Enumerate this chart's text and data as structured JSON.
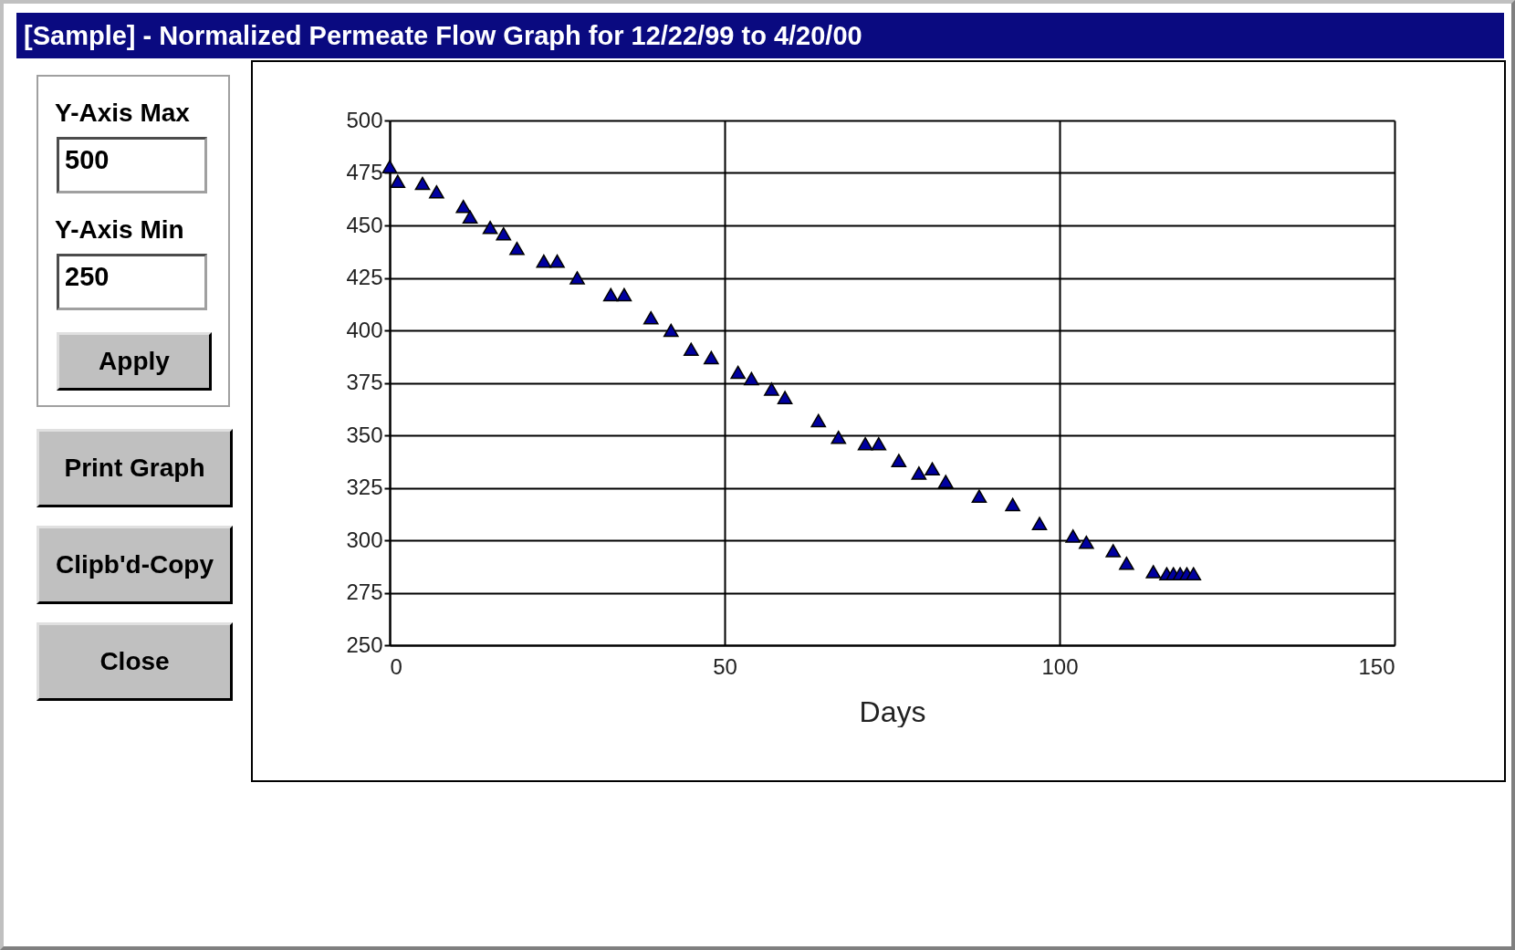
{
  "chart_data": {
    "type": "scatter",
    "title": "[Sample] - Normalized Permeate Flow Graph for 12/22/99 to 4/20/00",
    "xlabel": "Days",
    "x": [
      0,
      1.2,
      4.9,
      7,
      11,
      12,
      15,
      17,
      19,
      23,
      25,
      28,
      33,
      35,
      39,
      42,
      45,
      48,
      52,
      54,
      57,
      59,
      64,
      67,
      71,
      73,
      76,
      79,
      81,
      83,
      88,
      93,
      97,
      102,
      104,
      108,
      110,
      114,
      116,
      117,
      118,
      119,
      120
    ],
    "series": [
      {
        "color": "#0000a0",
        "values": [
          478,
          471,
          470,
          466,
          459,
          454,
          449,
          446,
          439,
          433,
          433,
          425,
          417,
          417,
          406,
          400,
          391,
          387,
          380,
          377,
          372,
          368,
          357,
          349,
          346,
          346,
          338,
          332,
          334,
          328,
          321,
          317,
          308,
          302,
          299,
          295,
          289,
          285,
          284,
          284,
          284,
          284,
          284
        ]
      }
    ],
    "xlim": [
      0,
      150
    ],
    "xticks": [
      0,
      50,
      100,
      150
    ],
    "ylim": [
      250,
      500
    ],
    "yticks": [
      250,
      275,
      300,
      325,
      350,
      375,
      400,
      425,
      450,
      475,
      500
    ],
    "grid": true,
    "marker": "triangle",
    "annotations": [
      "Y-Axis Max",
      "Y-Axis Min",
      "Apply",
      "Print Graph",
      "Clipb'd-Copy",
      "Close",
      "500",
      "250"
    ]
  }
}
